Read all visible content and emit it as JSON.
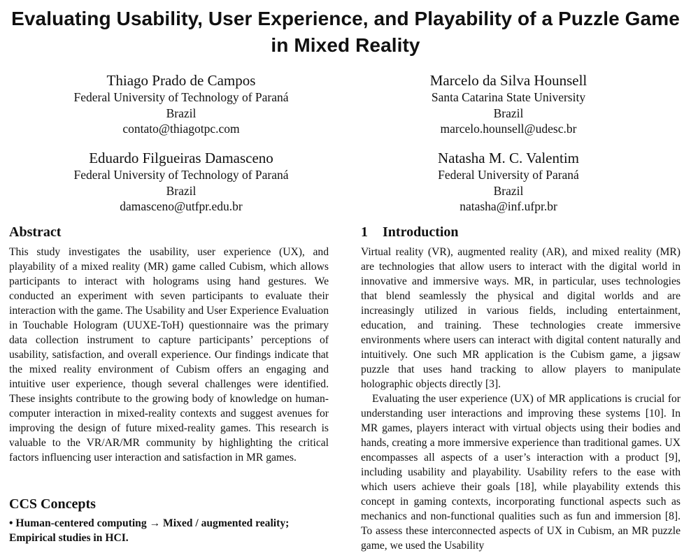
{
  "title": "Evaluating Usability, User Experience, and Playability of a Puzzle Game in Mixed Reality",
  "authors": [
    {
      "name": "Thiago Prado de Campos",
      "affiliation": "Federal University of Technology of Paraná",
      "country": "Brazil",
      "email": "contato@thiagotpc.com"
    },
    {
      "name": "Marcelo da Silva Hounsell",
      "affiliation": "Santa Catarina State University",
      "country": "Brazil",
      "email": "marcelo.hounsell@udesc.br"
    },
    {
      "name": "Eduardo Filgueiras Damasceno",
      "affiliation": "Federal University of Technology of Paraná",
      "country": "Brazil",
      "email": "damasceno@utfpr.edu.br"
    },
    {
      "name": "Natasha M. C. Valentim",
      "affiliation": "Federal University of Paraná",
      "country": "Brazil",
      "email": "natasha@inf.ufpr.br"
    }
  ],
  "abstract": {
    "heading": "Abstract",
    "text": "This study investigates the usability, user experience (UX), and playability of a mixed reality (MR) game called Cubism, which allows participants to interact with holograms using hand gestures. We conducted an experiment with seven participants to evaluate their interaction with the game. The Usability and User Experience Evaluation in Touchable Hologram (UUXE-ToH) questionnaire was the primary data collection instrument to capture participants’ perceptions of usability, satisfaction, and overall experience. Our findings indicate that the mixed reality environment of Cubism offers an engaging and intuitive user experience, though several challenges were identified. These insights contribute to the growing body of knowledge on human-computer interaction in mixed-reality contexts and suggest avenues for improving the design of future mixed-reality games. This research is valuable to the VR/AR/MR community by highlighting the critical factors influencing user interaction and satisfaction in MR games."
  },
  "ccs": {
    "heading": "CCS Concepts",
    "text": "• Human-centered computing → Mixed / augmented reality; Empirical studies in HCI."
  },
  "introduction": {
    "number": "1",
    "heading": "Introduction",
    "paragraphs": [
      "Virtual reality (VR), augmented reality (AR), and mixed reality (MR) are technologies that allow users to interact with the digital world in innovative and immersive ways. MR, in particular, uses technologies that blend seamlessly the physical and digital worlds and are increasingly utilized in various fields, including entertainment, education, and training. These technologies create immersive environments where users can interact with digital content naturally and intuitively. One such MR application is the Cubism game, a jigsaw puzzle that uses hand tracking to allow players to manipulate holographic objects directly [3].",
      "Evaluating the user experience (UX) of MR applications is crucial for understanding user interactions and improving these systems [10]. In MR games, players interact with virtual objects using their bodies and hands, creating a more immersive experience than traditional games. UX encompasses all aspects of a user’s interaction with a product [9], including usability and playability. Usability refers to the ease with which users achieve their goals [18], while playability extends this concept in gaming contexts, incorporating functional aspects such as mechanics and non-functional qualities such as fun and immersion [8]. To assess these interconnected aspects of UX in Cubism, an MR puzzle game, we used the Usability"
    ]
  }
}
